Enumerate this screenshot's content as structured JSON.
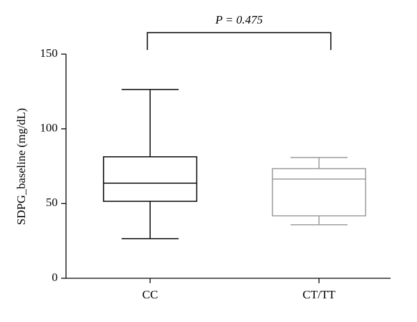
{
  "chart_data": {
    "type": "box",
    "ylabel": "SDPG_baseline (mg/dL)",
    "annotation": "P = 0.475",
    "categories": [
      "CC",
      "CT/TT"
    ],
    "boxes": [
      {
        "min": 26.5,
        "q1": 51.5,
        "median": 63.6,
        "q3": 81.3,
        "max": 126.3,
        "color": "#000000"
      },
      {
        "min": 35.8,
        "q1": 41.8,
        "median": 66.4,
        "q3": 73.4,
        "max": 80.8,
        "color": "#9a9a9a"
      }
    ],
    "ylim": [
      0,
      150
    ],
    "yticks": [
      0,
      50,
      100,
      150
    ]
  }
}
